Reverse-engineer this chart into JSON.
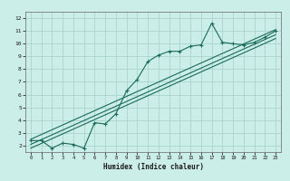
{
  "title": "",
  "xlabel": "Humidex (Indice chaleur)",
  "bg_color": "#cceee8",
  "grid_color": "#aad4ce",
  "line_color": "#1a6b5a",
  "xlim": [
    -0.5,
    23.5
  ],
  "ylim": [
    1.5,
    12.5
  ],
  "xticks": [
    0,
    1,
    2,
    3,
    4,
    5,
    6,
    7,
    8,
    9,
    10,
    11,
    12,
    13,
    14,
    15,
    16,
    17,
    18,
    19,
    20,
    21,
    22,
    23
  ],
  "yticks": [
    2,
    3,
    4,
    5,
    6,
    7,
    8,
    9,
    10,
    11,
    12
  ],
  "data_x": [
    0,
    1,
    2,
    3,
    4,
    5,
    6,
    7,
    8,
    9,
    10,
    11,
    12,
    13,
    14,
    15,
    16,
    17,
    18,
    19,
    20,
    21,
    22,
    23
  ],
  "data_y": [
    2.4,
    2.4,
    1.8,
    2.2,
    2.1,
    1.8,
    3.8,
    3.7,
    4.5,
    6.3,
    7.2,
    8.6,
    9.1,
    9.4,
    9.4,
    9.8,
    9.9,
    11.6,
    10.1,
    10.0,
    9.9,
    10.1,
    10.5,
    11.0
  ],
  "line1_x": [
    0,
    23
  ],
  "line1_y": [
    2.5,
    11.1
  ],
  "line2_x": [
    0,
    23
  ],
  "line2_y": [
    2.1,
    10.7
  ],
  "line3_x": [
    0,
    23
  ],
  "line3_y": [
    1.8,
    10.4
  ]
}
